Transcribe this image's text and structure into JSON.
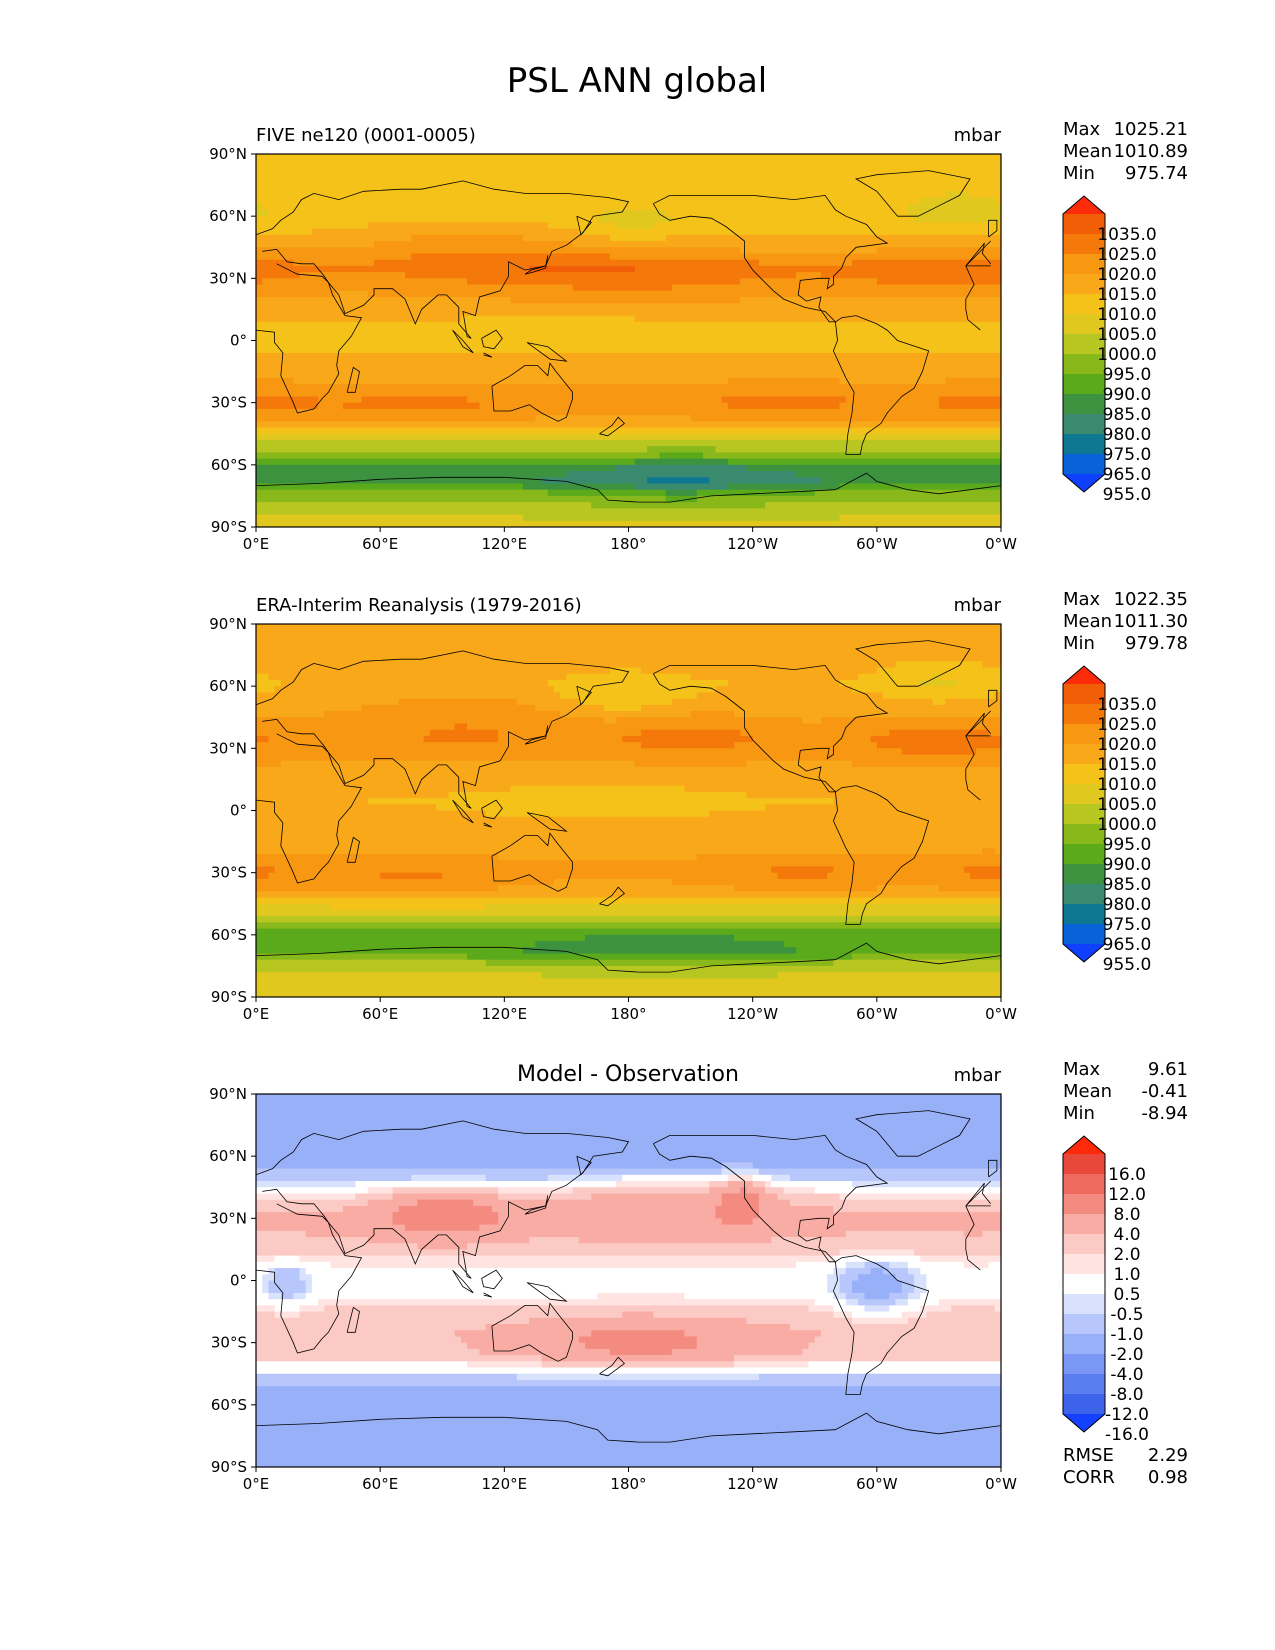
{
  "title": "PSL ANN global",
  "colors": {
    "ref_levels": [
      "#1040ff",
      "#0a62d8",
      "#0e7892",
      "#3a8a70",
      "#3d9240",
      "#5aaa1c",
      "#88b81a",
      "#b8c622",
      "#e0c81e",
      "#f5c21a",
      "#f8a818",
      "#f89812",
      "#f5780a",
      "#f25e06",
      "#fc2c0a"
    ],
    "diff_levels": [
      "#1440ff",
      "#3c63ea",
      "#5a7ef0",
      "#7a97f5",
      "#98b0f8",
      "#b7c7fb",
      "#d8e2fd",
      "#ffffff",
      "#ffe4e2",
      "#fccac5",
      "#f9aca4",
      "#f48b80",
      "#ee6a5e",
      "#e8483a",
      "#ff2a0a"
    ],
    "land_outline": "#000000",
    "text": "#000000"
  },
  "chart_data": [
    {
      "type": "map",
      "panel": "test",
      "title": "FIVE ne120 (0001-0005)",
      "units": "mbar",
      "stats": {
        "max_label": "Max",
        "max": "1025.21",
        "mean_label": "Mean",
        "mean": "1010.89",
        "min_label": "Min",
        "min": "975.74"
      },
      "colorbar_levels": [
        "1035.0",
        "1025.0",
        "1020.0",
        "1015.0",
        "1010.0",
        "1005.0",
        "1000.0",
        "995.0",
        "990.0",
        "985.0",
        "980.0",
        "975.0",
        "965.0",
        "955.0"
      ],
      "lat_ticks": [
        "90°N",
        "60°N",
        "30°N",
        "0°",
        "30°S",
        "60°S",
        "90°S"
      ],
      "lon_ticks": [
        "0°E",
        "60°E",
        "120°E",
        "180°",
        "120°W",
        "60°W",
        "0°W"
      ],
      "projection": "PlateCarree, lon 0..360, lat -90..90",
      "zonal_profile_mbar": [
        [
          90,
          1008
        ],
        [
          75,
          1007
        ],
        [
          60,
          1006
        ],
        [
          45,
          1012
        ],
        [
          35,
          1018
        ],
        [
          30,
          1016
        ],
        [
          15,
          1012
        ],
        [
          5,
          1009
        ],
        [
          -5,
          1010
        ],
        [
          -15,
          1013
        ],
        [
          -30,
          1017
        ],
        [
          -40,
          1013
        ],
        [
          -48,
          1002
        ],
        [
          -55,
          992
        ],
        [
          -62,
          982
        ],
        [
          -68,
          981
        ],
        [
          -75,
          994
        ],
        [
          -85,
          1000
        ],
        [
          -90,
          1001
        ]
      ],
      "highs": [
        {
          "lon": 185,
          "lat": 32,
          "dlon": 55,
          "dlat": 9,
          "amp": 7
        },
        {
          "lon": 335,
          "lat": 33,
          "dlon": 35,
          "dlat": 8,
          "amp": 7
        },
        {
          "lon": 100,
          "lat": 45,
          "dlon": 40,
          "dlat": 12,
          "amp": 6
        },
        {
          "lon": 80,
          "lat": -32,
          "dlon": 35,
          "dlat": 6,
          "amp": 5
        },
        {
          "lon": 255,
          "lat": -30,
          "dlon": 35,
          "dlat": 6,
          "amp": 5
        },
        {
          "lon": 355,
          "lat": -30,
          "dlon": 25,
          "dlat": 6,
          "amp": 5
        }
      ],
      "lows": [
        {
          "lon": 180,
          "lat": 55,
          "dlon": 18,
          "dlat": 6,
          "amp": 4
        },
        {
          "lon": 340,
          "lat": 62,
          "dlon": 15,
          "dlat": 6,
          "amp": 5
        },
        {
          "lon": 205,
          "lat": -70,
          "dlon": 35,
          "dlat": 8,
          "amp": 7
        },
        {
          "lon": 145,
          "lat": 5,
          "dlon": 35,
          "dlat": 6,
          "amp": 3
        }
      ]
    },
    {
      "type": "map",
      "panel": "reference",
      "title": "ERA-Interim Reanalysis (1979-2016)",
      "units": "mbar",
      "stats": {
        "max_label": "Max",
        "max": "1022.35",
        "mean_label": "Mean",
        "mean": "1011.30",
        "min_label": "Min",
        "min": "979.78"
      },
      "colorbar_levels": [
        "1035.0",
        "1025.0",
        "1020.0",
        "1015.0",
        "1010.0",
        "1005.0",
        "1000.0",
        "995.0",
        "990.0",
        "985.0",
        "980.0",
        "975.0",
        "965.0",
        "955.0"
      ],
      "lat_ticks": [
        "90°N",
        "60°N",
        "30°N",
        "0°",
        "30°S",
        "60°S",
        "90°S"
      ],
      "lon_ticks": [
        "0°E",
        "60°E",
        "120°E",
        "180°",
        "120°W",
        "60°W",
        "0°W"
      ],
      "projection": "PlateCarree, lon 0..360, lat -90..90",
      "zonal_profile_mbar": [
        [
          90,
          1013
        ],
        [
          75,
          1012
        ],
        [
          60,
          1010
        ],
        [
          45,
          1014
        ],
        [
          35,
          1017
        ],
        [
          30,
          1016
        ],
        [
          15,
          1012
        ],
        [
          5,
          1010
        ],
        [
          -5,
          1011
        ],
        [
          -15,
          1013
        ],
        [
          -30,
          1016
        ],
        [
          -40,
          1013
        ],
        [
          -48,
          1003
        ],
        [
          -55,
          993
        ],
        [
          -62,
          986
        ],
        [
          -68,
          986
        ],
        [
          -75,
          998
        ],
        [
          -85,
          1004
        ],
        [
          -90,
          1005
        ]
      ],
      "highs": [
        {
          "lon": 210,
          "lat": 35,
          "dlon": 25,
          "dlat": 8,
          "amp": 6
        },
        {
          "lon": 330,
          "lat": 33,
          "dlon": 30,
          "dlat": 8,
          "amp": 6
        },
        {
          "lon": 100,
          "lat": 45,
          "dlon": 40,
          "dlat": 12,
          "amp": 5
        },
        {
          "lon": 75,
          "lat": -32,
          "dlon": 30,
          "dlat": 6,
          "amp": 5
        },
        {
          "lon": 265,
          "lat": -30,
          "dlon": 30,
          "dlat": 6,
          "amp": 5
        },
        {
          "lon": 355,
          "lat": -30,
          "dlon": 20,
          "dlat": 6,
          "amp": 5
        }
      ],
      "lows": [
        {
          "lon": 175,
          "lat": 55,
          "dlon": 22,
          "dlat": 7,
          "amp": 6
        },
        {
          "lon": 330,
          "lat": 62,
          "dlon": 18,
          "dlat": 7,
          "amp": 6
        },
        {
          "lon": 195,
          "lat": -70,
          "dlon": 40,
          "dlat": 8,
          "amp": 4
        },
        {
          "lon": 165,
          "lat": 5,
          "dlon": 40,
          "dlat": 6,
          "amp": 3
        }
      ]
    },
    {
      "type": "map",
      "panel": "difference",
      "title": "Model - Observation",
      "units": "mbar",
      "stats": {
        "max_label": "Max",
        "max": "9.61",
        "mean_label": "Mean",
        "mean": "-0.41",
        "min_label": "Min",
        "min": "-8.94"
      },
      "colorbar_levels": [
        "16.0",
        "12.0",
        "8.0",
        "4.0",
        "2.0",
        "1.0",
        "0.5",
        "-0.5",
        "-1.0",
        "-2.0",
        "-4.0",
        "-8.0",
        "-12.0",
        "-16.0"
      ],
      "lat_ticks": [
        "90°N",
        "60°N",
        "30°N",
        "0°",
        "30°S",
        "60°S",
        "90°S"
      ],
      "lon_ticks": [
        "0°E",
        "60°E",
        "120°E",
        "180°",
        "120°W",
        "60°W",
        "0°W"
      ],
      "projection": "PlateCarree, lon 0..360, lat -90..90",
      "zonal_profile_mbar": [
        [
          90,
          -4
        ],
        [
          75,
          -4
        ],
        [
          60,
          -3.5
        ],
        [
          50,
          -1.5
        ],
        [
          42,
          0.5
        ],
        [
          30,
          2.5
        ],
        [
          15,
          1.5
        ],
        [
          5,
          0.2
        ],
        [
          -5,
          0.2
        ],
        [
          -15,
          1.2
        ],
        [
          -25,
          1.8
        ],
        [
          -35,
          1.6
        ],
        [
          -42,
          0
        ],
        [
          -50,
          -2
        ],
        [
          -60,
          -3.5
        ],
        [
          -68,
          -3
        ],
        [
          -75,
          -3
        ],
        [
          -85,
          -4
        ],
        [
          -90,
          -4
        ]
      ],
      "highs": [
        {
          "lon": 185,
          "lat": -30,
          "dlon": 40,
          "dlat": 8,
          "amp": 3
        },
        {
          "lon": 90,
          "lat": 33,
          "dlon": 20,
          "dlat": 8,
          "amp": 4
        },
        {
          "lon": 200,
          "lat": 38,
          "dlon": 40,
          "dlat": 10,
          "amp": 2
        },
        {
          "lon": 235,
          "lat": 40,
          "dlon": 8,
          "dlat": 8,
          "amp": 3
        }
      ],
      "lows": [
        {
          "lon": 300,
          "lat": -3,
          "dlon": 14,
          "dlat": 10,
          "amp": 3
        },
        {
          "lon": 15,
          "lat": -2,
          "dlon": 8,
          "dlat": 8,
          "amp": 2
        }
      ],
      "footer_stats": {
        "rmse_label": "RMSE",
        "rmse": "2.29",
        "corr_label": "CORR",
        "corr": "0.98"
      }
    }
  ]
}
